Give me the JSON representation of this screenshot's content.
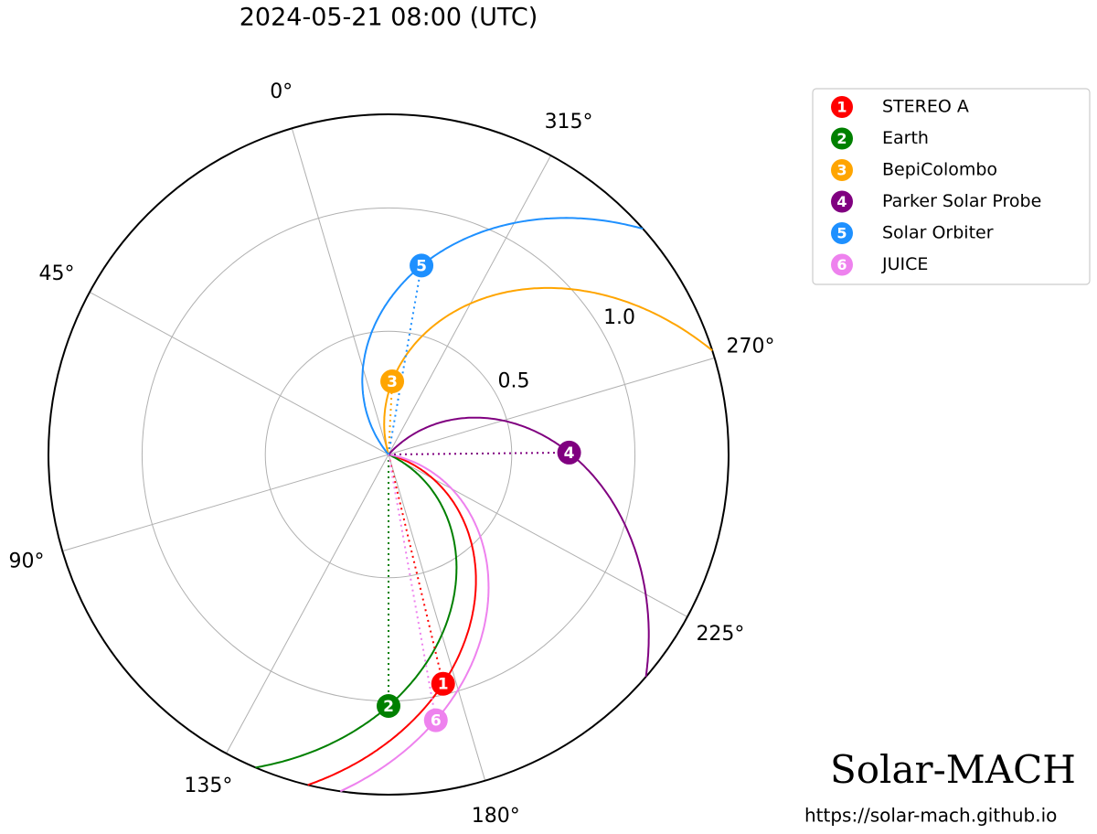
{
  "chart_data": {
    "type": "polar",
    "title": "2024-05-21 08:00 (UTC)",
    "rlim": [
      0,
      1.38
    ],
    "rticks": [
      0.5,
      {
        "value": 1.0,
        "label": "1.0"
      }
    ],
    "thetaticks": [
      {
        "value": 0,
        "label": "0°"
      },
      {
        "value": 45,
        "label": "45°"
      },
      {
        "value": 90,
        "label": "90°"
      },
      {
        "value": 135,
        "label": "135°"
      },
      {
        "value": 180,
        "label": "180°"
      },
      {
        "value": 225,
        "label": "225°"
      },
      {
        "value": 270,
        "label": "270°"
      },
      {
        "value": 315,
        "label": "315°"
      }
    ],
    "grid": true,
    "legend": "upper right",
    "series": [
      {
        "name": "STEREO A",
        "marker": "1",
        "color": "#ff0000",
        "r": 0.956,
        "theta": 176.9
      },
      {
        "name": "Earth",
        "marker": "2",
        "color": "#008000",
        "r": 1.02,
        "theta": 163.5
      },
      {
        "name": "BepiColombo",
        "marker": "3",
        "color": "#ffa500",
        "r": 0.297,
        "theta": 340.6
      },
      {
        "name": "Parker Solar Probe",
        "marker": "4",
        "color": "#800080",
        "r": 0.733,
        "theta": 254.1
      },
      {
        "name": "Solar Orbiter",
        "marker": "5",
        "color": "#1e90ff",
        "r": 0.778,
        "theta": 333.6
      },
      {
        "name": "JUICE",
        "marker": "6",
        "color": "#ee82ee",
        "r": 1.095,
        "theta": 173.6
      }
    ],
    "annotations": [
      "Solar-MACH",
      "https://solar-mach.github.io"
    ]
  }
}
